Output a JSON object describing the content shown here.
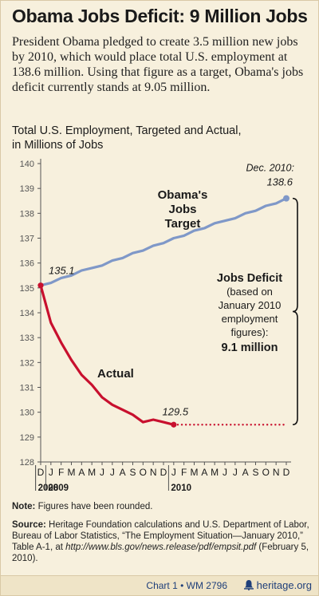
{
  "header": {
    "title": "Obama Jobs Deficit: 9 Million Jobs",
    "intro": "President Obama pledged to create 3.5 million new jobs by 2010, which would place total U.S. employment at 138.6 million. Using that figure as a target, Obama's jobs deficit currently stands at 9.05 million."
  },
  "colors": {
    "target": "#7f98c8",
    "actual": "#c8102e",
    "text": "#1a1a1a",
    "background": "#f7f0dd"
  },
  "chart_data": {
    "type": "line",
    "title": "Total U.S. Employment, Targeted and Actual,",
    "subtitle": "in Millions of Jobs",
    "ylim": [
      128,
      140
    ],
    "y_ticks": [
      128,
      129,
      130,
      131,
      132,
      133,
      134,
      135,
      136,
      137,
      138,
      139,
      140
    ],
    "x_tick_labels": [
      "D",
      "J",
      "F",
      "M",
      "A",
      "M",
      "J",
      "J",
      "A",
      "S",
      "O",
      "N",
      "D",
      "J",
      "F",
      "M",
      "A",
      "M",
      "J",
      "J",
      "A",
      "S",
      "O",
      "N",
      "D"
    ],
    "year_labels": [
      {
        "label": "2008",
        "at_index": 0
      },
      {
        "label": "2009",
        "at_index": 1
      },
      {
        "label": "2010",
        "at_index": 13
      }
    ],
    "grid": false,
    "series": [
      {
        "name": "Obama's Jobs Target",
        "label_lines": [
          "Obama's",
          "Jobs",
          "Target"
        ],
        "style": "solid",
        "values": [
          135.1,
          135.2,
          135.4,
          135.5,
          135.7,
          135.8,
          135.9,
          136.1,
          136.2,
          136.4,
          136.5,
          136.7,
          136.8,
          137.0,
          137.1,
          137.3,
          137.4,
          137.6,
          137.7,
          137.8,
          138.0,
          138.1,
          138.3,
          138.4,
          138.6
        ]
      },
      {
        "name": "Actual",
        "label_lines": [
          "Actual"
        ],
        "style": "solid",
        "values": [
          135.1,
          133.6,
          132.8,
          132.1,
          131.5,
          131.1,
          130.6,
          130.3,
          130.1,
          129.9,
          129.6,
          129.7,
          129.6,
          129.5
        ]
      },
      {
        "name": "",
        "label_lines": [],
        "style": "dotted",
        "values": [
          null,
          null,
          null,
          null,
          null,
          null,
          null,
          null,
          null,
          null,
          null,
          null,
          null,
          129.5,
          129.5,
          129.5,
          129.5,
          129.5,
          129.5,
          129.5,
          129.5,
          129.5,
          129.5,
          129.5,
          129.5
        ]
      }
    ],
    "annotations": {
      "start_value": "135.1",
      "end_target_date": "Dec. 2010:",
      "end_target_value": "138.6",
      "actual_end_value": "129.5",
      "deficit_lines": [
        "Jobs Deficit",
        "(based on",
        "January 2010",
        "employment",
        "figures):",
        "9.1 million"
      ]
    }
  },
  "notes": {
    "note_label": "Note:",
    "note_text": " Figures have been rounded.",
    "source_label": "Source:",
    "source_text": " Heritage Foundation calculations and U.S. Department of Labor, Bureau of Labor Statistics, “The Employment Situation—January 2010,” Table A-1, at ",
    "source_url": "http://www.bls.gov/news.release/pdf/empsit.pdf",
    "source_date": " (February 5, 2010)."
  },
  "footer": {
    "chart_id": "Chart 1 • WM 2796",
    "logo_text": "heritage.org",
    "logo_icon": "bell-icon"
  }
}
